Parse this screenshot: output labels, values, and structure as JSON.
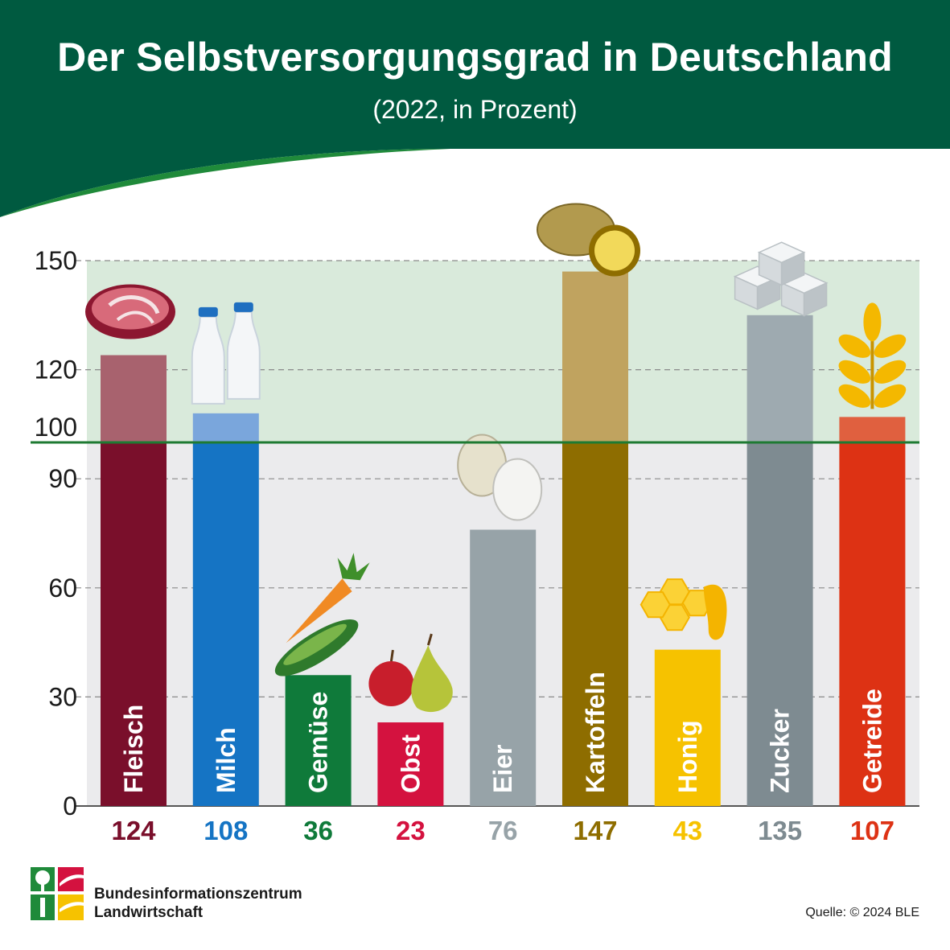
{
  "header": {
    "title": "Der Selbstversorgungsgrad in Deutschland",
    "subtitle": "(2022, in Prozent)"
  },
  "colors": {
    "header_bg": "#005a40",
    "header_swoosh": "#1f8a3a",
    "above_100_band": "#d9eadb",
    "below_100_band": "#ebebed",
    "reference_line": "#1e7a32"
  },
  "chart_data": {
    "type": "bar",
    "categories": [
      "Fleisch",
      "Milch",
      "Gemüse",
      "Obst",
      "Eier",
      "Kartoffeln",
      "Honig",
      "Zucker",
      "Getreide"
    ],
    "values": [
      124,
      108,
      36,
      23,
      76,
      147,
      43,
      135,
      107
    ],
    "value_labels": [
      "124",
      "108",
      "36",
      "23",
      "76",
      "147",
      "43",
      "135",
      "107"
    ],
    "bar_colors": [
      "#7a0f2b",
      "#1574c4",
      "#0f7a3a",
      "#d4123f",
      "#97a3a8",
      "#8e6d00",
      "#f6c200",
      "#7e8b91",
      "#dd3214"
    ],
    "bar_colors_above_100": [
      "#a8626e",
      "#7aa6dc",
      "#0f7a3a",
      "#d4123f",
      "#97a3a8",
      "#c0a35f",
      "#f6c200",
      "#9eaab0",
      "#e0603f"
    ],
    "label_colors": [
      "#7a0f2b",
      "#1574c4",
      "#0f7a3a",
      "#d4123f",
      "#97a3a8",
      "#8e6d00",
      "#f6c200",
      "#7e8b91",
      "#dd3214"
    ],
    "icons": [
      "meat-icon",
      "milk-bottles-icon",
      "vegetables-icon",
      "fruit-icon",
      "eggs-icon",
      "potatoes-icon",
      "honey-icon",
      "sugar-cubes-icon",
      "grain-icon"
    ],
    "yticks": [
      "0",
      "30",
      "60",
      "90",
      "120",
      "150"
    ],
    "ytick_values": [
      0,
      30,
      60,
      90,
      120,
      150
    ],
    "reference_value": 100,
    "reference_label": "100",
    "ylim": [
      0,
      150
    ],
    "grid": true,
    "xlabel": "",
    "ylabel": ""
  },
  "footer": {
    "org_line1": "Bundesinformationszentrum",
    "org_line2": "Landwirtschaft",
    "source": "Quelle: © 2024 BLE"
  }
}
